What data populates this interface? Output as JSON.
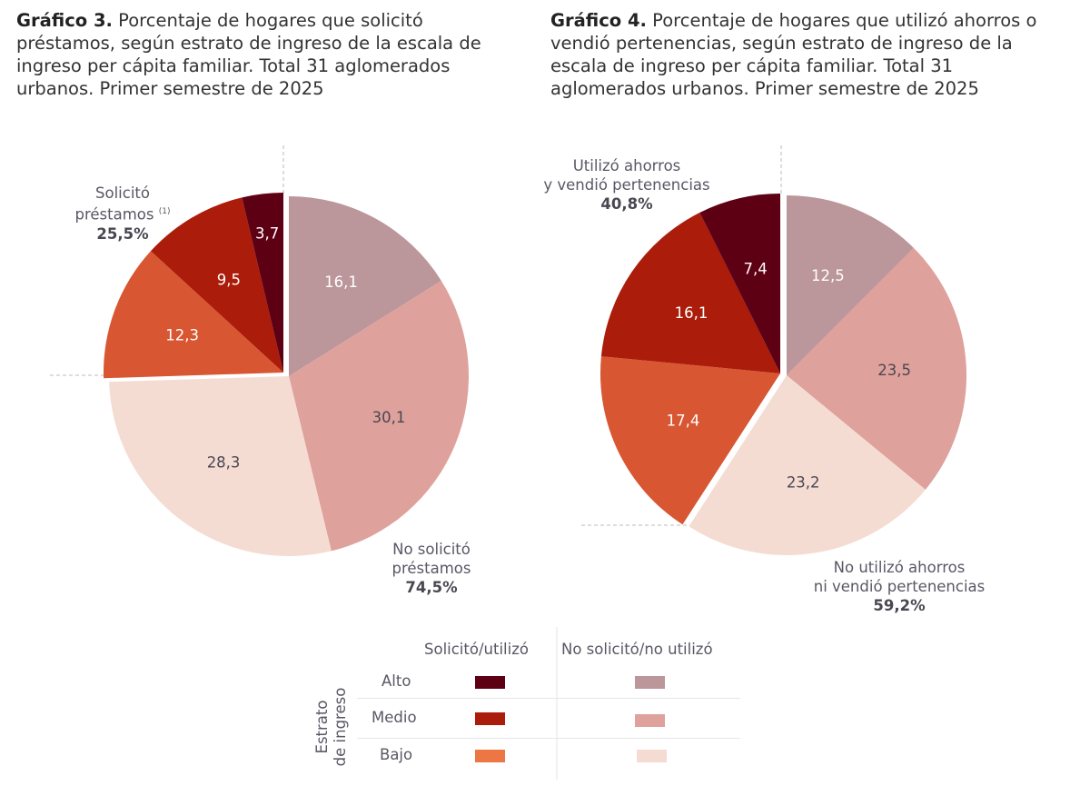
{
  "chart_data": [
    {
      "type": "pie",
      "id": "g3",
      "title_bold": "Gráfico 3.",
      "title": "Porcentaje de hogares que solicitó préstamos, según estrato de ingreso de la escala de ingreso per cápita familiar. Total 31 aglomerados urbanos. Primer semestre de 2025",
      "slices": [
        {
          "label": "Alto - No solicitó",
          "value": 16.1,
          "display": "16,1",
          "color": "#bb969b",
          "group": "no"
        },
        {
          "label": "Medio - No solicitó",
          "value": 30.1,
          "display": "30,1",
          "color": "#dea19b",
          "group": "no"
        },
        {
          "label": "Bajo - No solicitó",
          "value": 28.3,
          "display": "28,3",
          "color": "#f5dcd3",
          "group": "no"
        },
        {
          "label": "Bajo - Solicitó",
          "value": 12.3,
          "display": "12,3",
          "color": "#d85632",
          "group": "si"
        },
        {
          "label": "Medio - Solicitó",
          "value": 9.5,
          "display": "9,5",
          "color": "#ab1c0a",
          "group": "si"
        },
        {
          "label": "Alto - Solicitó",
          "value": 3.7,
          "display": "3,7",
          "color": "#5e0014",
          "group": "si"
        }
      ],
      "ann_si": {
        "line1": "Solicitó",
        "line2": "préstamos",
        "note": "(1)",
        "total": "25,5%"
      },
      "ann_no": {
        "line1": "No solicitó",
        "line2": "préstamos",
        "total": "74,5%"
      }
    },
    {
      "type": "pie",
      "id": "g4",
      "title_bold": "Gráfico 4.",
      "title": "Porcentaje de hogares que utilizó ahorros o vendió pertenencias, según estrato de ingreso de la escala de ingreso per cápita familiar. Total 31 aglomerados urbanos. Primer semestre de 2025",
      "slices": [
        {
          "label": "Alto - No utilizó",
          "value": 12.5,
          "display": "12,5",
          "color": "#bb969b",
          "group": "no"
        },
        {
          "label": "Medio - No utilizó",
          "value": 23.5,
          "display": "23,5",
          "color": "#dea19b",
          "group": "no"
        },
        {
          "label": "Bajo - No utilizó",
          "value": 23.2,
          "display": "23,2",
          "color": "#f5dcd3",
          "group": "no"
        },
        {
          "label": "Bajo - Utilizó",
          "value": 17.4,
          "display": "17,4",
          "color": "#d85632",
          "group": "si"
        },
        {
          "label": "Medio - Utilizó",
          "value": 16.1,
          "display": "16,1",
          "color": "#ab1c0a",
          "group": "si"
        },
        {
          "label": "Alto - Utilizó",
          "value": 7.4,
          "display": "7,4",
          "color": "#5e0014",
          "group": "si"
        }
      ],
      "ann_si": {
        "line1": "Utilizó ahorros",
        "line2": "y vendió pertenencias",
        "total": "40,8%"
      },
      "ann_no": {
        "line1": "No utilizó ahorros",
        "line2": "ni vendió pertenencias",
        "total": "59,2%"
      }
    }
  ],
  "legend": {
    "col_si": "Solicitó/utilizó",
    "col_no": "No solicitó/no utilizó",
    "axis_title_1": "Estrato",
    "axis_title_2": "de ingreso",
    "rows": [
      {
        "label": "Alto",
        "si": "#5e0014",
        "no": "#bb969b"
      },
      {
        "label": "Medio",
        "si": "#ab1c0a",
        "no": "#dea19b"
      },
      {
        "label": "Bajo",
        "si": "#ec7644",
        "no": "#f5dcd3"
      }
    ]
  }
}
